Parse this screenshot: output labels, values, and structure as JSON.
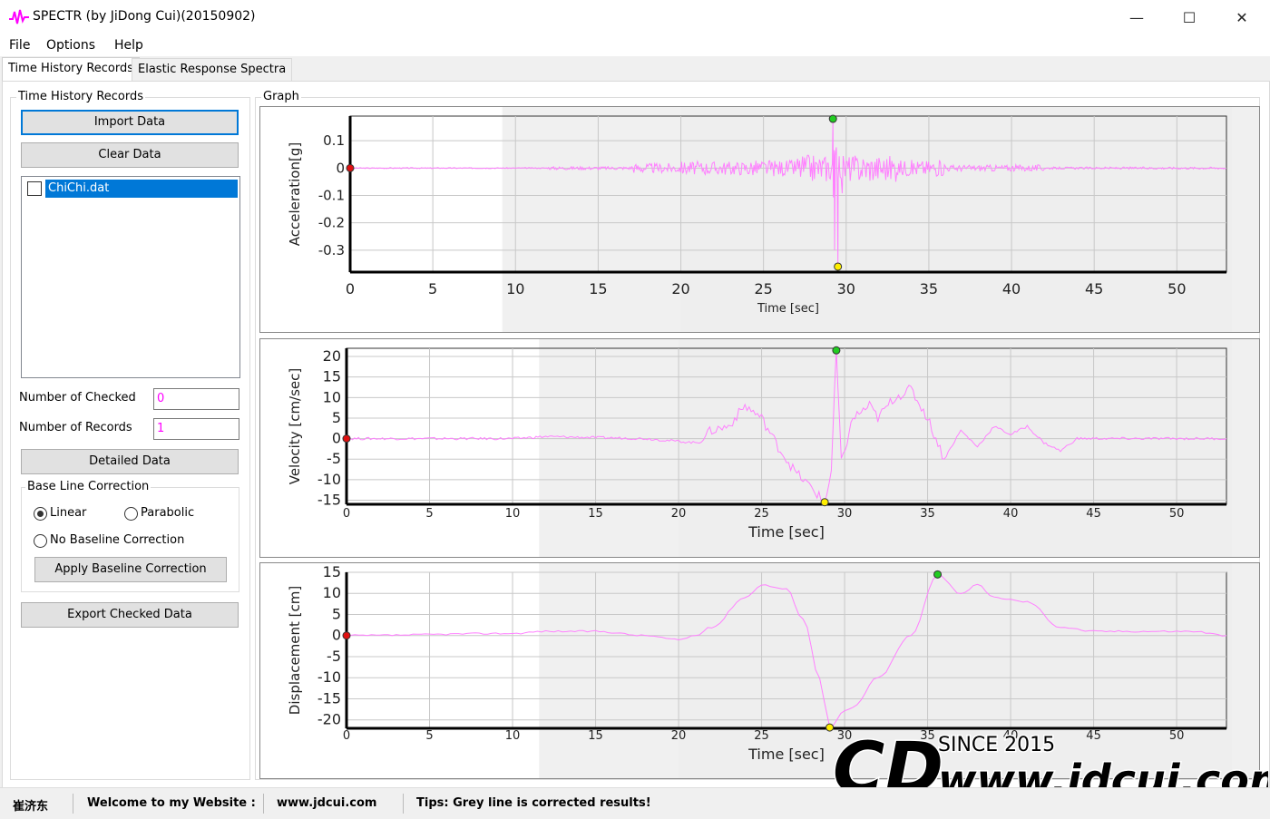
{
  "window": {
    "title": "SPECTR (by JiDong Cui)(20150902)",
    "minimize_glyph": "—",
    "maximize_glyph": "☐",
    "close_glyph": "✕"
  },
  "menu": [
    "File",
    "Options",
    "Help"
  ],
  "tabs": [
    "Time History Records",
    "Elastic Response Spectra"
  ],
  "left_panel": {
    "group_title": "Time History Records",
    "import_label": "Import Data",
    "clear_label": "Clear Data",
    "records": [
      {
        "name": "ChiChi.dat",
        "checked": false
      }
    ],
    "num_checked_label": "Number of Checked",
    "num_checked_value": "0",
    "num_records_label": "Number of Records",
    "num_records_value": "1",
    "detailed_label": "Detailed Data",
    "baseline": {
      "title": "Base Line Correction",
      "linear": "Linear",
      "parabolic": "Parabolic",
      "none": "No Baseline Correction",
      "selected": "linear",
      "apply_label": "Apply Baseline Correction"
    },
    "export_label": "Export Checked Data"
  },
  "graph": {
    "title": "Graph",
    "charts": [
      {
        "type": "line",
        "ylabel": "Acceleration[g]",
        "xlabel": "Time [sec]",
        "xlim": [
          0,
          53
        ],
        "ylim": [
          -0.38,
          0.19
        ],
        "xticks": [
          0,
          5,
          10,
          15,
          20,
          25,
          30,
          35,
          40,
          45,
          50
        ],
        "yticks": [
          0.1,
          0,
          -0.1,
          -0.2,
          -0.3
        ],
        "ytick_labels": [
          "0.1",
          "0",
          "-0.1",
          "-0.2",
          "-0.3"
        ],
        "series_color": "#ff80ff",
        "markers": {
          "start": {
            "x": 0,
            "y": 0,
            "color": "#e01010"
          },
          "max": {
            "x": 29.2,
            "y": 0.18,
            "color": "#22cc22"
          },
          "min": {
            "x": 29.5,
            "y": -0.36,
            "color": "#ffee00"
          }
        }
      },
      {
        "type": "line",
        "ylabel": "Velocity [cm/sec]",
        "xlabel": "Time [sec]",
        "xlim": [
          0,
          53
        ],
        "ylim": [
          -16,
          22
        ],
        "xticks": [
          0,
          5,
          10,
          15,
          20,
          25,
          30,
          35,
          40,
          45,
          50
        ],
        "yticks": [
          20,
          15,
          10,
          5,
          0,
          -5,
          -10,
          -15
        ],
        "ytick_labels": [
          "20",
          "15",
          "10",
          "5",
          "0",
          "-5",
          "-10",
          "-15"
        ],
        "series_color": "#ff80ff",
        "markers": {
          "start": {
            "x": 0,
            "y": 0,
            "color": "#e01010"
          },
          "max": {
            "x": 29.5,
            "y": 21.5,
            "color": "#22cc22"
          },
          "min": {
            "x": 28.8,
            "y": -15.5,
            "color": "#ffee00"
          }
        }
      },
      {
        "type": "line",
        "ylabel": "Displacement [cm]",
        "xlabel": "Time [sec]",
        "xlim": [
          0,
          53
        ],
        "ylim": [
          -22,
          15
        ],
        "xticks": [
          0,
          5,
          10,
          15,
          20,
          25,
          30,
          35,
          40,
          45,
          50
        ],
        "yticks": [
          15,
          10,
          5,
          0,
          -5,
          -10,
          -15,
          -20
        ],
        "ytick_labels": [
          "15",
          "10",
          "5",
          "0",
          "-5",
          "-10",
          "-15",
          "-20"
        ],
        "series_color": "#ff80ff",
        "markers": {
          "start": {
            "x": 0,
            "y": 0,
            "color": "#e01010"
          },
          "max": {
            "x": 35.6,
            "y": 14.5,
            "color": "#22cc22"
          },
          "min": {
            "x": 29.1,
            "y": -21.8,
            "color": "#ffee00"
          }
        }
      }
    ]
  },
  "status": {
    "author": "崔济东",
    "welcome": "Welcome to my Website :",
    "site": "www.jdcui.com",
    "tips": "Tips: Grey line is corrected results!"
  },
  "watermark": {
    "logo": "CD",
    "since": "SINCE 2015",
    "url": "www.jdcui.com"
  }
}
